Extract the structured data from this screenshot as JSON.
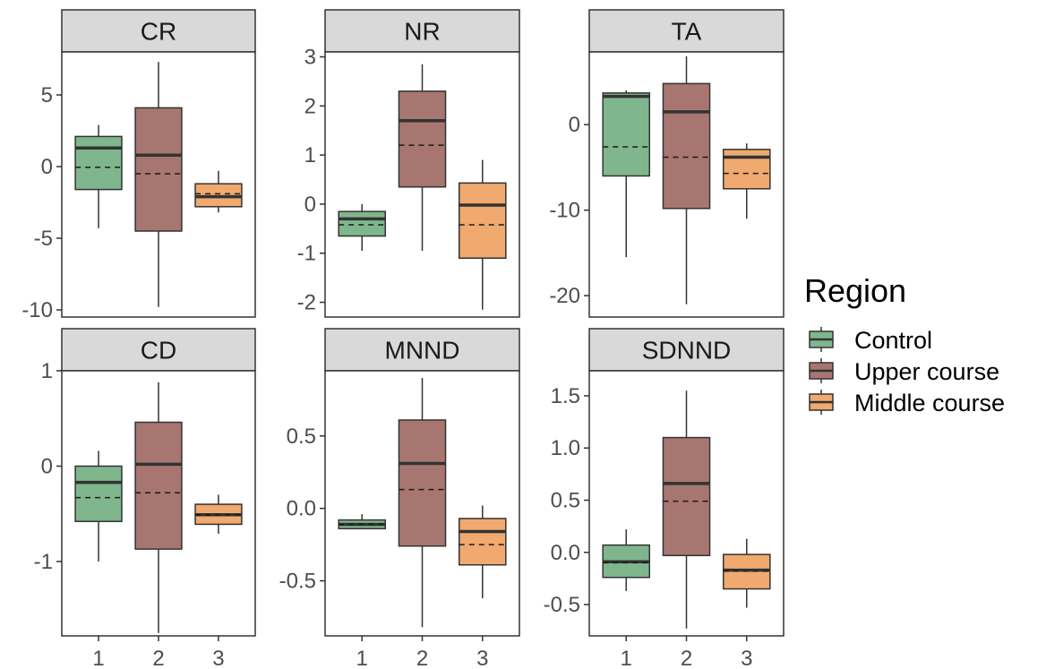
{
  "chart_data": {
    "type": "boxplot",
    "x_categories": [
      "1",
      "2",
      "3"
    ],
    "legend": {
      "title": "Region",
      "entries": [
        {
          "label": "Control",
          "color": "#7fb68d"
        },
        {
          "label": "Upper course",
          "color": "#a87670"
        },
        {
          "label": "Middle course",
          "color": "#f0a96e"
        }
      ]
    },
    "panels": [
      {
        "title": "CR",
        "ylim": [
          -10.5,
          8
        ],
        "yticks": [
          5,
          0,
          -5,
          -10
        ],
        "yticklabels": [
          "5",
          "0",
          "-5",
          "-10"
        ],
        "boxes": [
          {
            "x": "1",
            "whisker_low": -4.3,
            "q1": -1.6,
            "median": 1.3,
            "q3": 2.1,
            "whisker_high": 2.9,
            "mean": -0.05
          },
          {
            "x": "2",
            "whisker_low": -9.8,
            "q1": -4.5,
            "median": 0.8,
            "q3": 4.1,
            "whisker_high": 7.3,
            "mean": -0.5
          },
          {
            "x": "3",
            "whisker_low": -3.2,
            "q1": -2.8,
            "median": -2.1,
            "q3": -1.2,
            "whisker_high": -0.3,
            "mean": -1.9
          }
        ]
      },
      {
        "title": "NR",
        "ylim": [
          -2.3,
          3.1
        ],
        "yticks": [
          3,
          2,
          1,
          0,
          -1,
          -2
        ],
        "yticklabels": [
          "3",
          "2",
          "1",
          "0",
          "-1",
          "-2"
        ],
        "boxes": [
          {
            "x": "1",
            "whisker_low": -0.95,
            "q1": -0.65,
            "median": -0.3,
            "q3": -0.15,
            "whisker_high": 0.0,
            "mean": -0.42
          },
          {
            "x": "2",
            "whisker_low": -0.95,
            "q1": 0.35,
            "median": 1.7,
            "q3": 2.3,
            "whisker_high": 2.85,
            "mean": 1.2
          },
          {
            "x": "3",
            "whisker_low": -2.15,
            "q1": -1.1,
            "median": -0.02,
            "q3": 0.43,
            "whisker_high": 0.9,
            "mean": -0.42
          }
        ]
      },
      {
        "title": "TA",
        "ylim": [
          -22.5,
          8.5
        ],
        "yticks": [
          0,
          -10,
          -20
        ],
        "yticklabels": [
          "0",
          "-10",
          "-20"
        ],
        "boxes": [
          {
            "x": "1",
            "whisker_low": -15.5,
            "q1": -6.0,
            "median": 3.3,
            "q3": 3.7,
            "whisker_high": 4.0,
            "mean": -2.6
          },
          {
            "x": "2",
            "whisker_low": -21.0,
            "q1": -9.8,
            "median": 1.5,
            "q3": 4.8,
            "whisker_high": 8.0,
            "mean": -3.8
          },
          {
            "x": "3",
            "whisker_low": -11.0,
            "q1": -7.5,
            "median": -3.8,
            "q3": -2.9,
            "whisker_high": -2.2,
            "mean": -5.7
          }
        ]
      },
      {
        "title": "CD",
        "ylim": [
          -1.78,
          1.0
        ],
        "yticks": [
          1,
          0,
          -1
        ],
        "yticklabels": [
          "1",
          "0",
          "-1"
        ],
        "boxes": [
          {
            "x": "1",
            "whisker_low": -1.0,
            "q1": -0.58,
            "median": -0.17,
            "q3": 0.0,
            "whisker_high": 0.16,
            "mean": -0.33
          },
          {
            "x": "2",
            "whisker_low": -1.75,
            "q1": -0.87,
            "median": 0.02,
            "q3": 0.46,
            "whisker_high": 0.88,
            "mean": -0.28
          },
          {
            "x": "3",
            "whisker_low": -0.71,
            "q1": -0.61,
            "median": -0.51,
            "q3": -0.4,
            "whisker_high": -0.3,
            "mean": -0.51
          }
        ]
      },
      {
        "title": "MNND",
        "ylim": [
          -0.88,
          0.95
        ],
        "yticks": [
          0.5,
          0.0,
          -0.5
        ],
        "yticklabels": [
          "0.5",
          "0.0",
          "-0.5"
        ],
        "boxes": [
          {
            "x": "1",
            "whisker_low": -0.14,
            "q1": -0.14,
            "median": -0.11,
            "q3": -0.08,
            "whisker_high": -0.04,
            "mean": -0.11
          },
          {
            "x": "2",
            "whisker_low": -0.82,
            "q1": -0.26,
            "median": 0.31,
            "q3": 0.61,
            "whisker_high": 0.9,
            "mean": 0.13
          },
          {
            "x": "3",
            "whisker_low": -0.62,
            "q1": -0.39,
            "median": -0.16,
            "q3": -0.07,
            "whisker_high": 0.02,
            "mean": -0.25
          }
        ]
      },
      {
        "title": "SDNND",
        "ylim": [
          -0.8,
          1.74
        ],
        "yticks": [
          1.5,
          1.0,
          0.5,
          0.0,
          -0.5
        ],
        "yticklabels": [
          "1.5",
          "1.0",
          "0.5",
          "0.0",
          "-0.5"
        ],
        "boxes": [
          {
            "x": "1",
            "whisker_low": -0.37,
            "q1": -0.24,
            "median": -0.09,
            "q3": 0.07,
            "whisker_high": 0.22,
            "mean": -0.1
          },
          {
            "x": "2",
            "whisker_low": -0.73,
            "q1": -0.03,
            "median": 0.66,
            "q3": 1.1,
            "whisker_high": 1.55,
            "mean": 0.49
          },
          {
            "x": "3",
            "whisker_low": -0.53,
            "q1": -0.35,
            "median": -0.17,
            "q3": -0.02,
            "whisker_high": 0.13,
            "mean": -0.18
          }
        ]
      }
    ]
  }
}
